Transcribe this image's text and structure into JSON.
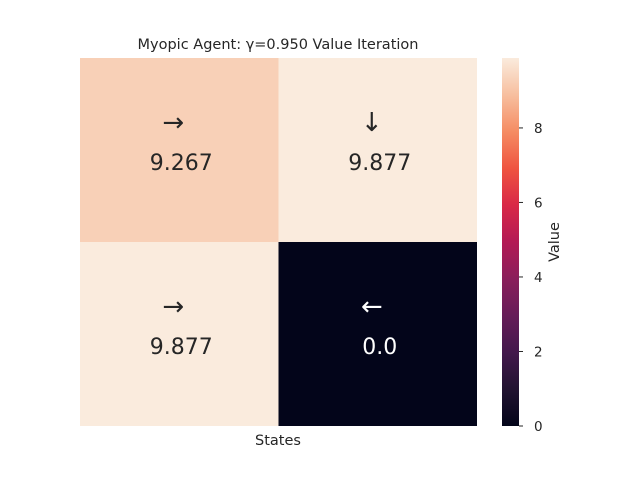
{
  "chart_data": {
    "type": "heatmap",
    "title": "Myopic Agent: γ=0.950 Value Iteration",
    "xlabel": "States",
    "ylabel": "",
    "colorbar_label": "Value",
    "colorbar_ticks": [
      "0",
      "2",
      "4",
      "6",
      "8"
    ],
    "vmin": 0,
    "vmax": 9.877,
    "rows": 2,
    "cols": 2,
    "cells": [
      {
        "row": 0,
        "col": 0,
        "value": 9.267,
        "value_label": "9.267",
        "arrow": "→"
      },
      {
        "row": 0,
        "col": 1,
        "value": 9.877,
        "value_label": "9.877",
        "arrow": "↓"
      },
      {
        "row": 1,
        "col": 0,
        "value": 9.877,
        "value_label": "9.877",
        "arrow": "→"
      },
      {
        "row": 1,
        "col": 1,
        "value": 0.0,
        "value_label": "0.0",
        "arrow": "←"
      }
    ],
    "colormap": "rocket",
    "grid": false,
    "legend": "none"
  }
}
